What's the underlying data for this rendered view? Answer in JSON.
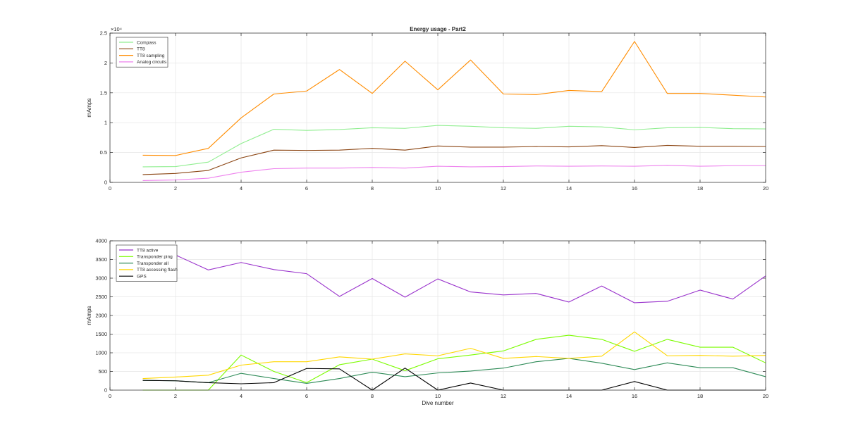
{
  "chart_data": [
    {
      "type": "line",
      "title": "Energy usage - Part2",
      "xlabel": "",
      "ylabel": "mAmps",
      "xlim": [
        0,
        20
      ],
      "ylim": [
        0,
        25000
      ],
      "x_ticks": [
        0,
        2,
        4,
        6,
        8,
        10,
        12,
        14,
        16,
        18,
        20
      ],
      "y_ticks": [
        0,
        5000,
        10000,
        15000,
        20000,
        25000
      ],
      "y_tick_labels": [
        "0",
        "0.5",
        "1",
        "1.5",
        "2",
        "2.5"
      ],
      "y_exponent": "×10⁴",
      "grid": true,
      "legend_position": "top-left",
      "x": [
        1,
        2,
        3,
        4,
        5,
        6,
        7,
        8,
        9,
        10,
        11,
        12,
        13,
        14,
        15,
        16,
        17,
        18,
        19,
        20
      ],
      "series": [
        {
          "name": "Compass",
          "color": "#90ee90",
          "values": [
            2600,
            2650,
            3400,
            6500,
            8900,
            8700,
            8850,
            9150,
            9050,
            9550,
            9400,
            9150,
            9050,
            9400,
            9300,
            8800,
            9150,
            9200,
            9000,
            8950
          ]
        },
        {
          "name": "TT8",
          "color": "#8b4513",
          "values": [
            1300,
            1500,
            2000,
            4100,
            5400,
            5350,
            5400,
            5700,
            5400,
            6100,
            5900,
            5900,
            6000,
            5950,
            6150,
            5850,
            6200,
            6050,
            6050,
            6000
          ]
        },
        {
          "name": "TT8 sampling",
          "color": "#ff8c00",
          "values": [
            4550,
            4500,
            5700,
            10800,
            14800,
            15300,
            18900,
            14900,
            20300,
            15500,
            20500,
            14800,
            14700,
            15400,
            15200,
            23600,
            14900,
            14900,
            14600,
            14300
          ]
        },
        {
          "name": "Analog circuits",
          "color": "#ee82ee",
          "values": [
            300,
            400,
            700,
            1700,
            2300,
            2400,
            2400,
            2500,
            2400,
            2700,
            2600,
            2650,
            2750,
            2700,
            2750,
            2700,
            2850,
            2700,
            2800,
            2800
          ]
        }
      ]
    },
    {
      "type": "line",
      "title": "",
      "xlabel": "Dive number",
      "ylabel": "mAmps",
      "xlim": [
        0,
        20
      ],
      "ylim": [
        0,
        4000
      ],
      "x_ticks": [
        0,
        2,
        4,
        6,
        8,
        10,
        12,
        14,
        16,
        18,
        20
      ],
      "y_ticks": [
        0,
        500,
        1000,
        1500,
        2000,
        2500,
        3000,
        3500,
        4000
      ],
      "y_tick_labels": [
        "0",
        "500",
        "1000",
        "1500",
        "2000",
        "2500",
        "3000",
        "3500",
        "4000"
      ],
      "y_exponent": "",
      "grid": true,
      "legend_position": "top-left",
      "x": [
        1,
        2,
        3,
        4,
        5,
        6,
        7,
        8,
        9,
        10,
        11,
        12,
        13,
        14,
        15,
        16,
        17,
        18,
        19,
        20
      ],
      "series": [
        {
          "name": "TT8 active",
          "color": "#9932cc",
          "values": [
            3700,
            3620,
            3220,
            3420,
            3230,
            3120,
            2510,
            2990,
            2490,
            2980,
            2630,
            2550,
            2590,
            2360,
            2790,
            2340,
            2380,
            2680,
            2440,
            3060
          ]
        },
        {
          "name": "Transponder ping",
          "color": "#7cfc00",
          "values": [
            0,
            0,
            0,
            940,
            500,
            200,
            680,
            830,
            520,
            840,
            940,
            1050,
            1360,
            1470,
            1360,
            1040,
            1360,
            1150,
            1150,
            730
          ]
        },
        {
          "name": "Transponder all",
          "color": "#2e8b57",
          "values": [
            260,
            250,
            200,
            450,
            310,
            180,
            310,
            480,
            360,
            460,
            510,
            590,
            760,
            850,
            720,
            550,
            730,
            600,
            600,
            360
          ]
        },
        {
          "name": "TT8 accessing flash",
          "color": "#ffd700",
          "values": [
            310,
            350,
            400,
            670,
            760,
            760,
            890,
            830,
            970,
            920,
            1120,
            850,
            900,
            850,
            910,
            1560,
            920,
            930,
            910,
            930
          ]
        },
        {
          "name": "GPS",
          "color": "#000000",
          "values": [
            260,
            250,
            200,
            170,
            200,
            580,
            570,
            0,
            590,
            0,
            190,
            0,
            0,
            0,
            0,
            230,
            0,
            0,
            0,
            0
          ]
        }
      ]
    }
  ]
}
